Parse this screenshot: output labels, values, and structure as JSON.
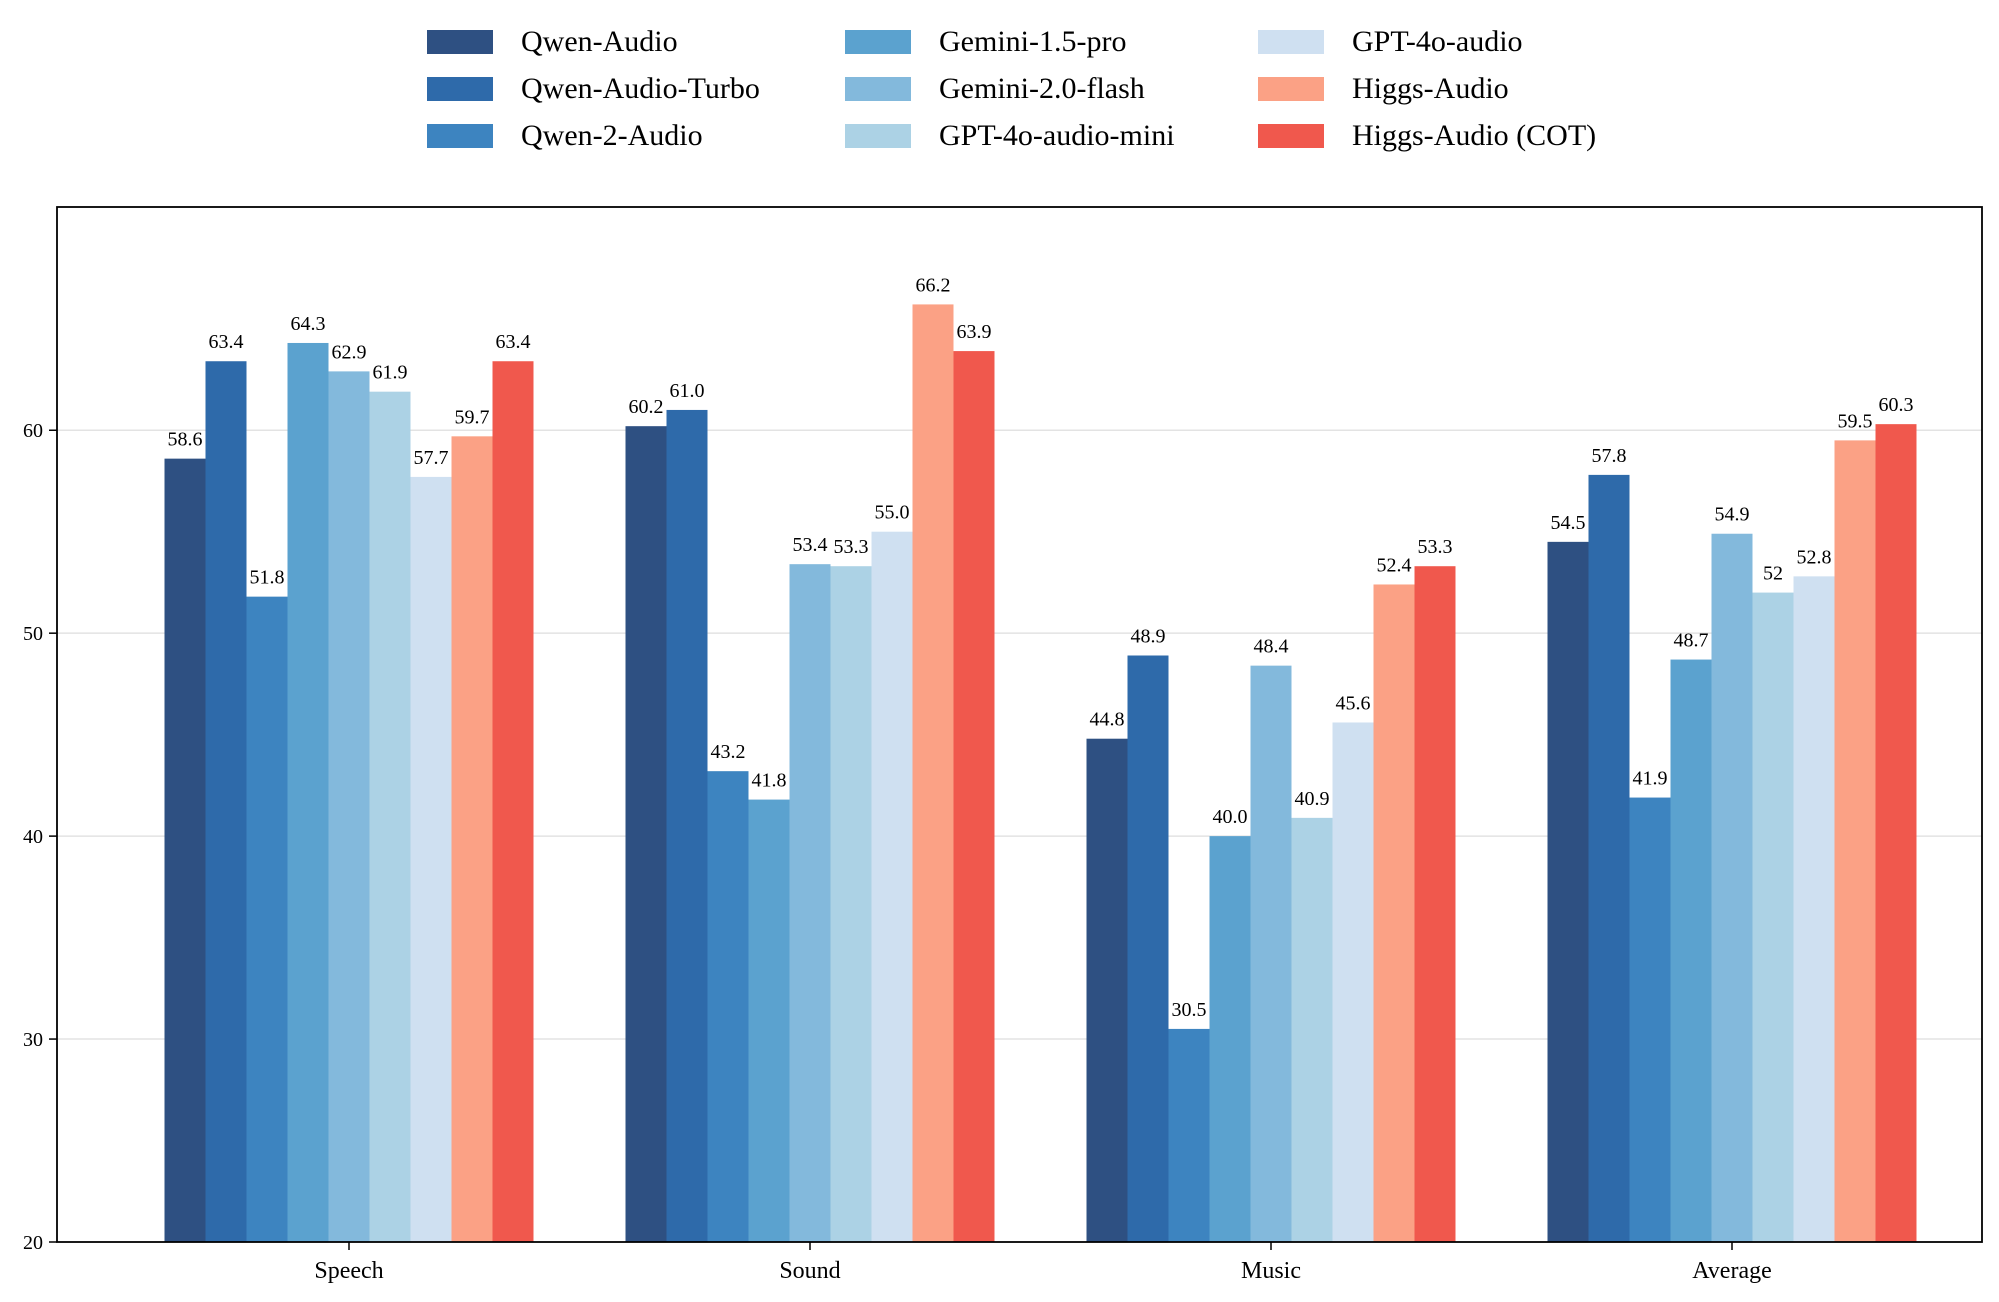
{
  "chart_data": {
    "type": "bar",
    "title": "",
    "xlabel": "",
    "ylabel": "",
    "ylim": [
      20,
      71
    ],
    "yticks": [
      20,
      30,
      40,
      50,
      60
    ],
    "grid": "horizontal",
    "legend_position": "top-center",
    "categories": [
      "Speech",
      "Sound",
      "Music",
      "Average"
    ],
    "series": [
      {
        "name": "Qwen-Audio",
        "color": "#2e5082",
        "values": [
          58.6,
          60.2,
          44.8,
          54.5
        ],
        "labels": [
          "58.6",
          "60.2",
          "44.8",
          "54.5"
        ]
      },
      {
        "name": "Qwen-Audio-Turbo",
        "color": "#2e6aaa",
        "values": [
          63.4,
          61.0,
          48.9,
          57.8
        ],
        "labels": [
          "63.4",
          "61.0",
          "48.9",
          "57.8"
        ]
      },
      {
        "name": "Qwen-2-Audio",
        "color": "#3d84c0",
        "values": [
          51.8,
          43.2,
          30.5,
          41.9
        ],
        "labels": [
          "51.8",
          "43.2",
          "30.5",
          "41.9"
        ]
      },
      {
        "name": "Gemini-1.5-pro",
        "color": "#5ba2cf",
        "values": [
          64.3,
          41.8,
          40.0,
          48.7
        ],
        "labels": [
          "64.3",
          "41.8",
          "40.0",
          "48.7"
        ]
      },
      {
        "name": "Gemini-2.0-flash",
        "color": "#83b9dc",
        "values": [
          62.9,
          53.4,
          48.4,
          54.9
        ],
        "labels": [
          "62.9",
          "53.4",
          "48.4",
          "54.9"
        ]
      },
      {
        "name": "GPT-4o-audio-mini",
        "color": "#acd2e5",
        "values": [
          61.9,
          53.3,
          40.9,
          52
        ],
        "labels": [
          "61.9",
          "53.3",
          "40.9",
          "52"
        ]
      },
      {
        "name": "GPT-4o-audio",
        "color": "#cfe0f1",
        "values": [
          57.7,
          55.0,
          45.6,
          52.8
        ],
        "labels": [
          "57.7",
          "55.0",
          "45.6",
          "52.8"
        ]
      },
      {
        "name": "Higgs-Audio",
        "color": "#fba185",
        "values": [
          59.7,
          66.2,
          52.4,
          59.5
        ],
        "labels": [
          "59.7",
          "66.2",
          "52.4",
          "59.5"
        ]
      },
      {
        "name": "Higgs-Audio (COT)",
        "color": "#f0584d",
        "values": [
          63.4,
          63.9,
          53.3,
          60.3
        ],
        "labels": [
          "63.4",
          "63.9",
          "53.3",
          "60.3"
        ]
      }
    ]
  }
}
